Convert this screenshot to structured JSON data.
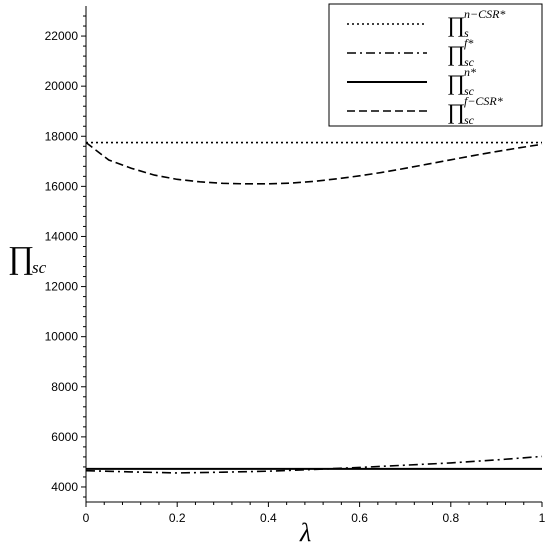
{
  "chart_data": {
    "type": "line",
    "xlabel": "λ",
    "ylabel_main": "∏",
    "ylabel_sub": "sc",
    "xlim": [
      0,
      1
    ],
    "ylim": [
      3400,
      23200
    ],
    "xticks": [
      0,
      0.2,
      0.4,
      0.6,
      0.8,
      1
    ],
    "xtick_labels": [
      "0",
      "0.2",
      "0.4",
      "0.6",
      "0.8",
      "1"
    ],
    "yticks": [
      4000,
      6000,
      8000,
      10000,
      12000,
      14000,
      16000,
      18000,
      20000,
      22000
    ],
    "ytick_labels": [
      "4000",
      "6000",
      "8000",
      "10000",
      "12000",
      "14000",
      "16000",
      "18000",
      "20000",
      "22000"
    ],
    "grid": false,
    "legend_position": "top-right",
    "series": [
      {
        "style": "dotted",
        "legend_main": "∏",
        "legend_sub": "s",
        "legend_sup": "n−CSR*",
        "x": [
          0,
          0.2,
          0.4,
          0.6,
          0.8,
          1.0
        ],
        "y": [
          17750,
          17750,
          17750,
          17750,
          17750,
          17750
        ]
      },
      {
        "style": "dashdot",
        "legend_main": "∏",
        "legend_sub": "sc",
        "legend_sup": "f*",
        "x": [
          0,
          0.1,
          0.2,
          0.3,
          0.4,
          0.5,
          0.6,
          0.7,
          0.8,
          0.9,
          1.0
        ],
        "y": [
          4650,
          4600,
          4560,
          4590,
          4630,
          4700,
          4780,
          4870,
          4960,
          5080,
          5220
        ]
      },
      {
        "style": "solid",
        "legend_main": "∏",
        "legend_sub": "sc",
        "legend_sup": "n*",
        "x": [
          0,
          0.2,
          0.4,
          0.6,
          0.8,
          1.0
        ],
        "y": [
          4720,
          4720,
          4720,
          4720,
          4720,
          4720
        ]
      },
      {
        "style": "dashed",
        "legend_main": "∏",
        "legend_sub": "sc",
        "legend_sup": "f−CSR*",
        "x": [
          0,
          0.05,
          0.1,
          0.15,
          0.2,
          0.25,
          0.3,
          0.35,
          0.4,
          0.45,
          0.5,
          0.55,
          0.6,
          0.65,
          0.7,
          0.75,
          0.8,
          0.85,
          0.9,
          0.95,
          1.0
        ],
        "y": [
          17750,
          17050,
          16720,
          16450,
          16280,
          16180,
          16120,
          16100,
          16100,
          16130,
          16200,
          16300,
          16420,
          16560,
          16720,
          16890,
          17060,
          17230,
          17390,
          17540,
          17680
        ]
      }
    ]
  }
}
